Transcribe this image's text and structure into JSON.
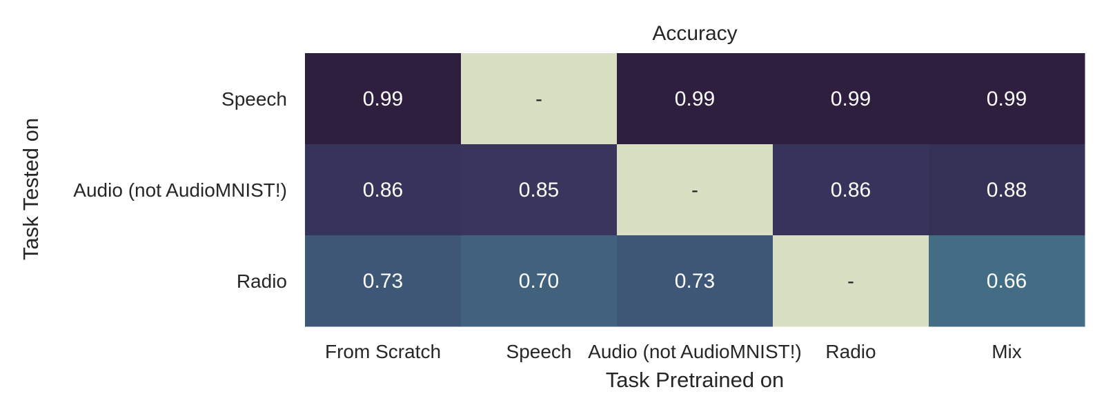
{
  "chart_data": {
    "type": "heatmap",
    "title": "Accuracy",
    "xlabel": "Task Pretrained on",
    "ylabel": "Task Tested on",
    "x_categories": [
      "From Scratch",
      "Speech",
      "Audio (not AudioMNIST!)",
      "Radio",
      "Mix"
    ],
    "y_categories": [
      "Speech",
      "Audio (not AudioMNIST!)",
      "Radio"
    ],
    "values": [
      [
        0.99,
        null,
        0.99,
        0.99,
        0.99
      ],
      [
        0.86,
        0.85,
        null,
        0.86,
        0.88
      ],
      [
        0.73,
        0.7,
        0.73,
        null,
        0.66
      ]
    ],
    "cell_labels": [
      [
        "0.99",
        "-",
        "0.99",
        "0.99",
        "0.99"
      ],
      [
        "0.86",
        "0.85",
        "-",
        "0.86",
        "0.88"
      ],
      [
        "0.73",
        "0.70",
        "0.73",
        "-",
        "0.66"
      ]
    ],
    "missing_color": "#d8dfc2",
    "colormap": {
      "low": "#436d84",
      "mid": "#3a3a62",
      "high": "#2e1f3f"
    },
    "colorbar": false,
    "grid": false
  }
}
